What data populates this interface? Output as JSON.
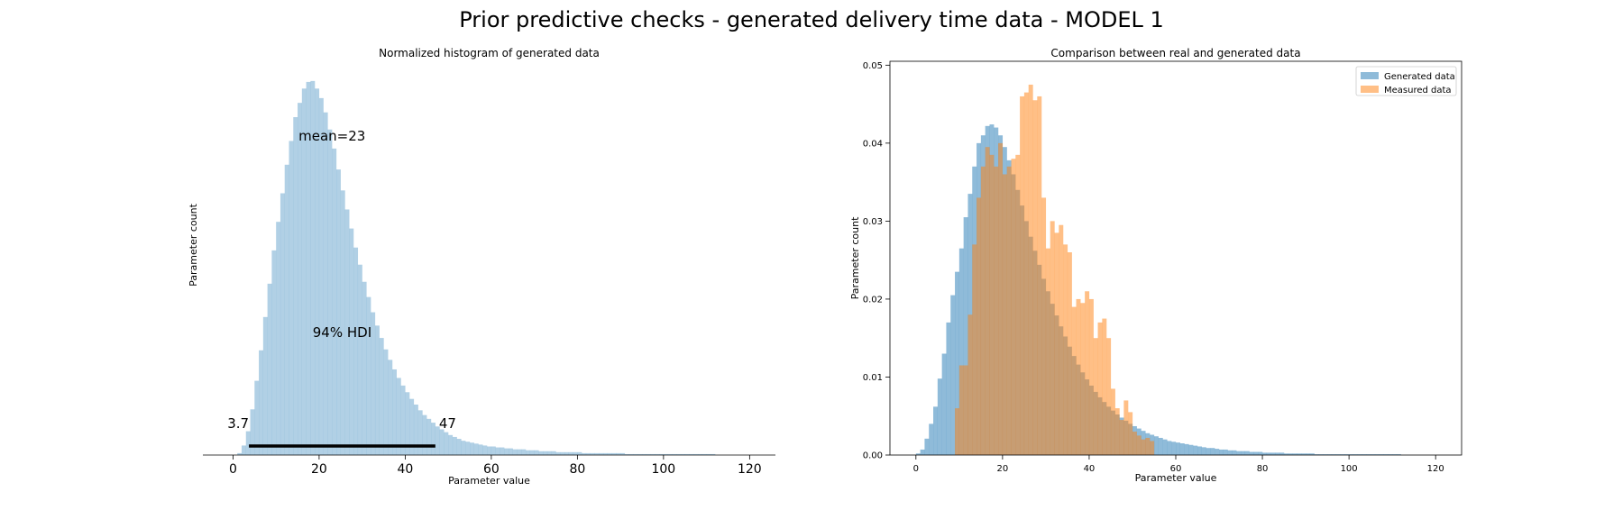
{
  "figure": {
    "suptitle": "Prior predictive checks - generated delivery time data - MODEL 1"
  },
  "chart_data": [
    {
      "type": "bar",
      "title": "Normalized histogram of generated data",
      "xlabel": "Parameter value",
      "ylabel": "Parameter count",
      "xlim": [
        -7,
        126
      ],
      "ylim": [
        0,
        0.0426
      ],
      "xticks": [
        0,
        20,
        40,
        60,
        80,
        100,
        120
      ],
      "yticks_visible": false,
      "frame": "bottom-only",
      "bin_width": 1,
      "bins_start": 1,
      "series": [
        {
          "color": "#1f77b4",
          "opacity": 0.35,
          "values": [
            0.0002,
            0.001,
            0.0025,
            0.0048,
            0.0078,
            0.011,
            0.0145,
            0.018,
            0.0215,
            0.0245,
            0.0275,
            0.0305,
            0.033,
            0.0355,
            0.037,
            0.0385,
            0.0392,
            0.0393,
            0.0385,
            0.0375,
            0.036,
            0.0342,
            0.0322,
            0.03,
            0.0278,
            0.0258,
            0.0238,
            0.0218,
            0.02,
            0.0182,
            0.0166,
            0.015,
            0.0136,
            0.0123,
            0.0111,
            0.01,
            0.009,
            0.0081,
            0.0073,
            0.0066,
            0.0059,
            0.0053,
            0.0047,
            0.0042,
            0.0038,
            0.0034,
            0.003,
            0.0027,
            0.0024,
            0.0021,
            0.0019,
            0.0017,
            0.0015,
            0.0014,
            0.0013,
            0.0012,
            0.0011,
            0.001,
            0.0009,
            0.0009,
            0.0008,
            0.0008,
            0.0007,
            0.0007,
            0.0006,
            0.0006,
            0.0006,
            0.0005,
            0.0005,
            0.0005,
            0.0004,
            0.0004,
            0.0004,
            0.0004,
            0.0003,
            0.0003,
            0.0003,
            0.0003,
            0.0003,
            0.0003,
            0.0002,
            0.0002,
            0.0002,
            0.0002,
            0.0002,
            0.0002,
            0.0002,
            0.0002,
            0.0002,
            0.0002,
            0.0001,
            0.0001,
            0.0001,
            0.0001,
            0.0001,
            0.0001,
            0.0001,
            0.0001,
            0.0001,
            0.0001,
            0.0001,
            0.0001,
            0.0001,
            0.0001,
            0.0001,
            0.0001,
            0.0001,
            0.0001,
            0.0001,
            0.0001,
            0.0001
          ]
        }
      ],
      "annotations": {
        "mean_label": "mean=23",
        "mean_value": 23,
        "hdi_label": "94% HDI",
        "hdi_low": 3.7,
        "hdi_high": 47,
        "hdi_low_label": "3.7",
        "hdi_high_label": "47"
      }
    },
    {
      "type": "bar",
      "title": "Comparison between real and generated data",
      "xlabel": "Parameter value",
      "ylabel": "Parameter count",
      "xlim": [
        -6,
        126
      ],
      "ylim": [
        0,
        0.0505
      ],
      "xticks": [
        0,
        20,
        40,
        60,
        80,
        100,
        120
      ],
      "yticks": [
        0.0,
        0.01,
        0.02,
        0.03,
        0.04,
        0.05
      ],
      "ytick_labels": [
        "0.00",
        "0.01",
        "0.02",
        "0.03",
        "0.04",
        "0.05"
      ],
      "legend": "top-right",
      "bin_width": 1,
      "series": [
        {
          "name": "Generated data",
          "color": "#1f77b4",
          "opacity": 0.5,
          "bins_start": 0,
          "values": [
            0.0002,
            0.0007,
            0.0021,
            0.004,
            0.0062,
            0.0098,
            0.013,
            0.017,
            0.0205,
            0.0235,
            0.0265,
            0.0305,
            0.0335,
            0.037,
            0.04,
            0.041,
            0.0422,
            0.0424,
            0.042,
            0.041,
            0.0395,
            0.0378,
            0.036,
            0.034,
            0.032,
            0.03,
            0.028,
            0.0262,
            0.0244,
            0.0226,
            0.021,
            0.0194,
            0.0179,
            0.0165,
            0.0152,
            0.0139,
            0.0127,
            0.0116,
            0.0106,
            0.0097,
            0.0089,
            0.0081,
            0.0074,
            0.0068,
            0.0062,
            0.0057,
            0.0052,
            0.0048,
            0.0044,
            0.004,
            0.0037,
            0.0034,
            0.0031,
            0.0028,
            0.0026,
            0.0024,
            0.0022,
            0.002,
            0.0018,
            0.0017,
            0.0016,
            0.0015,
            0.0014,
            0.0013,
            0.0012,
            0.0011,
            0.001,
            0.0009,
            0.0009,
            0.0008,
            0.0007,
            0.0007,
            0.0006,
            0.0006,
            0.0005,
            0.0005,
            0.0005,
            0.0004,
            0.0004,
            0.0004,
            0.0003,
            0.0003,
            0.0003,
            0.0003,
            0.0003,
            0.0002,
            0.0002,
            0.0002,
            0.0002,
            0.0002,
            0.0002,
            0.0002,
            0.0001,
            0.0001,
            0.0001,
            0.0001,
            0.0001,
            0.0001,
            0.0001,
            0.0001,
            0.0001,
            0.0001,
            0.0001,
            0.0001,
            0.0001,
            0.0001,
            0.0001,
            0.0001,
            0.0001,
            0.0001,
            0.0001,
            0.0001
          ]
        },
        {
          "name": "Measured data",
          "color": "#ff7f0e",
          "opacity": 0.5,
          "bins_start": 9,
          "values": [
            0.006,
            0.0115,
            0.0115,
            0.018,
            0.027,
            0.033,
            0.037,
            0.0395,
            0.0385,
            0.037,
            0.04,
            0.036,
            0.037,
            0.038,
            0.0385,
            0.046,
            0.0465,
            0.0475,
            0.0455,
            0.046,
            0.033,
            0.0265,
            0.03,
            0.0285,
            0.0295,
            0.027,
            0.026,
            0.019,
            0.02,
            0.0195,
            0.021,
            0.02,
            0.015,
            0.017,
            0.0175,
            0.015,
            0.0085,
            0.006,
            0.0045,
            0.007,
            0.0055,
            0.003,
            0.0025,
            0.002,
            0.0022,
            0.0018
          ]
        }
      ]
    }
  ]
}
